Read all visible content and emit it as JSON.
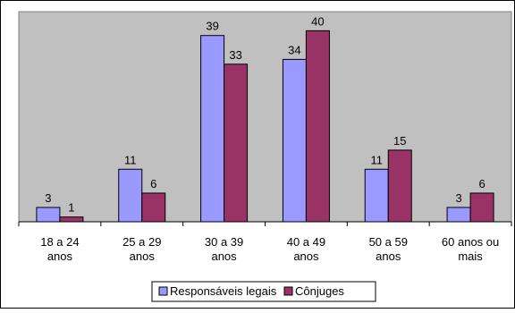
{
  "chart_data": {
    "type": "bar",
    "categories": [
      [
        "18 a 24",
        "anos"
      ],
      [
        "25 a 29",
        "anos"
      ],
      [
        "30 a 39",
        "anos"
      ],
      [
        "40 a 49",
        "anos"
      ],
      [
        "50 a 59",
        "anos"
      ],
      [
        "60 anos ou",
        "mais"
      ]
    ],
    "series": [
      {
        "name": "Responsáveis legais",
        "values": [
          3,
          11,
          39,
          34,
          11,
          3
        ],
        "color": "#9999ff"
      },
      {
        "name": "Cônjuges",
        "values": [
          1,
          6,
          33,
          40,
          15,
          6
        ],
        "color": "#993366"
      }
    ],
    "ylim": [
      0,
      44
    ],
    "grid": false,
    "plot_background": "#c0c0c0",
    "legend_position": "bottom"
  }
}
